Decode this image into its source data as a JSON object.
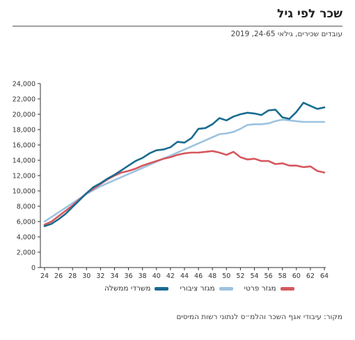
{
  "header": {
    "title": "שכר לפי גיל",
    "subtitle": "עובדים שכירים, גילאי 24-65, 2019"
  },
  "source": "מקור: עיבודי אגף השכר והלמ״ס לנתוני רשות המיסים",
  "colors": {
    "government": "#1a6b8f",
    "public": "#9cc3e0",
    "private": "#d6575d",
    "axis": "#333333",
    "grid": "#e0e0e0"
  },
  "chart_data": {
    "type": "line",
    "xlim": [
      24,
      64
    ],
    "ylim": [
      0,
      24000
    ],
    "x_ticks": [
      24,
      26,
      28,
      30,
      32,
      34,
      36,
      38,
      40,
      42,
      44,
      46,
      48,
      50,
      52,
      54,
      56,
      58,
      60,
      62,
      64
    ],
    "y_ticks": [
      0,
      2000,
      4000,
      6000,
      8000,
      10000,
      12000,
      14000,
      16000,
      18000,
      20000,
      22000,
      24000
    ],
    "y_tick_labels": [
      "0",
      "2,000",
      "4,000",
      "6,000",
      "8,000",
      "10,000",
      "12,000",
      "14,000",
      "16,000",
      "18,000",
      "20,000",
      "22,000",
      "24,000"
    ],
    "x": [
      24,
      25,
      26,
      27,
      28,
      29,
      30,
      31,
      32,
      33,
      34,
      35,
      36,
      37,
      38,
      39,
      40,
      41,
      42,
      43,
      44,
      45,
      46,
      47,
      48,
      49,
      50,
      51,
      52,
      53,
      54,
      55,
      56,
      57,
      58,
      59,
      60,
      61,
      62,
      63,
      64
    ],
    "series": [
      {
        "name": "משרדי ממשלה",
        "key": "government",
        "values": [
          5400,
          5700,
          6300,
          7000,
          7900,
          8800,
          9700,
          10500,
          11000,
          11600,
          12100,
          12700,
          13300,
          13900,
          14300,
          14900,
          15300,
          15400,
          15700,
          16400,
          16300,
          16900,
          18100,
          18200,
          18700,
          19500,
          19200,
          19700,
          20000,
          20200,
          20100,
          19900,
          20500,
          20600,
          19600,
          19400,
          20300,
          21500,
          21100,
          20700,
          20900
        ]
      },
      {
        "name": "מגזר ציבורי",
        "key": "public",
        "values": [
          6000,
          6600,
          7200,
          7800,
          8400,
          9000,
          9600,
          10100,
          10600,
          11000,
          11400,
          11800,
          12200,
          12600,
          13000,
          13400,
          13800,
          14200,
          14600,
          15000,
          15400,
          15800,
          16200,
          16600,
          17000,
          17400,
          17500,
          17700,
          18100,
          18600,
          18700,
          18700,
          18800,
          19100,
          19300,
          19200,
          19100,
          19000,
          19000,
          19000,
          19000
        ]
      },
      {
        "name": "מגזר פרטי",
        "key": "private",
        "values": [
          5600,
          6000,
          6700,
          7400,
          8100,
          8900,
          9700,
          10300,
          10900,
          11500,
          12000,
          12400,
          12600,
          12900,
          13300,
          13600,
          13900,
          14200,
          14400,
          14700,
          14900,
          15000,
          15000,
          15100,
          15200,
          15000,
          14700,
          15100,
          14400,
          14100,
          14200,
          13900,
          13900,
          13500,
          13600,
          13300,
          13300,
          13100,
          13200,
          12600,
          12400
        ]
      }
    ],
    "legend_position": "bottom",
    "grid": false
  }
}
